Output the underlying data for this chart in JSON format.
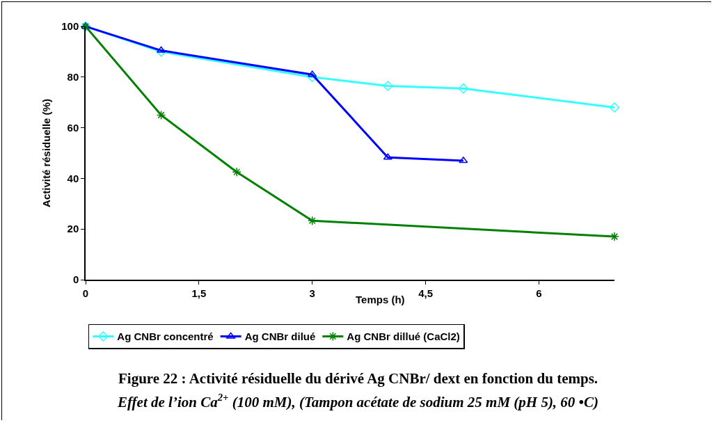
{
  "chart_data": {
    "type": "line",
    "xlabel": "Temps (h)",
    "ylabel": "Activité résiduelle (%)",
    "xlim": [
      0,
      7
    ],
    "xticks": [
      0,
      {
        "value": 1.5,
        "label": "1,5"
      },
      3,
      {
        "value": 4.5,
        "label": "4,5"
      },
      6
    ],
    "ylim": [
      0,
      100
    ],
    "yticks": [
      0,
      20,
      40,
      60,
      80,
      100
    ],
    "grid": false,
    "legend": "bottom",
    "series": [
      {
        "name": "Ag CNBr concentré",
        "color": "#33ffff",
        "marker": "diamond",
        "x": [
          0,
          1,
          3,
          4,
          5,
          7
        ],
        "values": [
          100,
          90,
          80,
          76.5,
          75.5,
          68
        ]
      },
      {
        "name": "Ag CNBr dilué",
        "color": "#0000ff",
        "marker": "triangle",
        "x": [
          0,
          1,
          3,
          4,
          5
        ],
        "values": [
          100,
          90.5,
          81,
          48.3,
          47
        ]
      },
      {
        "name": "Ag CNBr dillué (CaCl2)",
        "color": "#008000",
        "marker": "cross",
        "x": [
          0,
          1,
          2,
          3,
          7
        ],
        "values": [
          100,
          65,
          42.5,
          23.3,
          17
        ]
      }
    ],
    "annotations": [
      "Figure 22 : Activité résiduelle du dérivé Ag CNBr/ dext en fonction du temps.",
      "Effet de l’ion Ca$^{2+}$ (100 mM), (Tampon acétate de sodium 25 mM (pH 5), 60 •C)"
    ]
  }
}
